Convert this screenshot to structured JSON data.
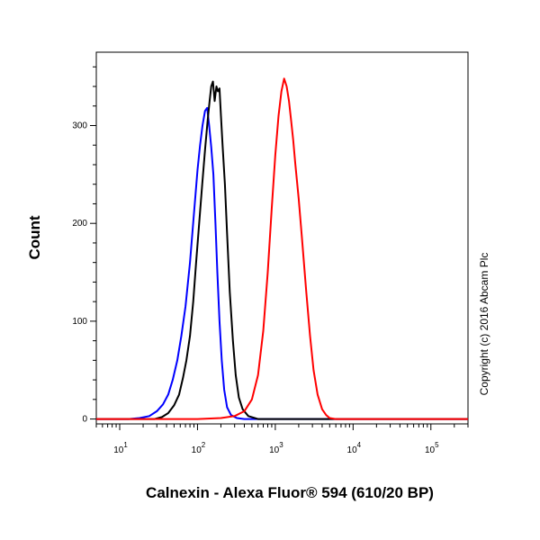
{
  "chart_data": {
    "type": "line",
    "xlabel": "Calnexin - Alexa Fluor® 594 (610/20 BP)",
    "ylabel": "Count",
    "x_scale": "log",
    "xlim": [
      5,
      300000
    ],
    "ylim": [
      -5,
      375
    ],
    "x_ticks": [
      {
        "value": 10,
        "base": "10",
        "exp": "1"
      },
      {
        "value": 100,
        "base": "10",
        "exp": "2"
      },
      {
        "value": 1000,
        "base": "10",
        "exp": "3"
      },
      {
        "value": 10000,
        "base": "10",
        "exp": "4"
      },
      {
        "value": 100000,
        "base": "10",
        "exp": "5"
      }
    ],
    "y_ticks": [
      {
        "value": 0,
        "label": "0"
      },
      {
        "value": 100,
        "label": "100"
      },
      {
        "value": 200,
        "label": "200"
      },
      {
        "value": 300,
        "label": "300"
      }
    ],
    "grid": false,
    "series": [
      {
        "color": "#0000ff",
        "x": [
          5,
          13,
          18,
          24,
          30,
          36,
          42,
          48,
          55,
          62,
          70,
          80,
          90,
          100,
          108,
          116,
          125,
          133,
          141,
          150,
          160,
          170,
          180,
          192,
          205,
          220,
          240,
          270,
          320,
          400,
          1000,
          10000,
          300000
        ],
        "y": [
          0,
          0,
          1,
          3,
          8,
          15,
          25,
          40,
          60,
          85,
          115,
          160,
          210,
          255,
          280,
          300,
          315,
          318,
          300,
          278,
          250,
          200,
          150,
          100,
          60,
          30,
          12,
          4,
          1,
          0,
          0,
          0,
          0
        ]
      },
      {
        "color": "#000000",
        "x": [
          5,
          28,
          35,
          42,
          50,
          58,
          65,
          72,
          80,
          88,
          96,
          105,
          115,
          125,
          135,
          143,
          150,
          158,
          166,
          175,
          183,
          192,
          200,
          210,
          225,
          240,
          260,
          285,
          310,
          340,
          380,
          450,
          600,
          1000,
          10000,
          300000
        ],
        "y": [
          0,
          0,
          2,
          6,
          14,
          25,
          42,
          60,
          85,
          120,
          160,
          200,
          240,
          275,
          305,
          325,
          340,
          345,
          325,
          340,
          335,
          338,
          310,
          280,
          240,
          190,
          130,
          80,
          45,
          22,
          10,
          3,
          0,
          0,
          0,
          0
        ]
      },
      {
        "color": "#ff0000",
        "x": [
          5,
          100,
          200,
          300,
          400,
          500,
          600,
          700,
          800,
          900,
          1000,
          1100,
          1200,
          1300,
          1400,
          1500,
          1600,
          1700,
          1800,
          2000,
          2200,
          2500,
          2800,
          3100,
          3500,
          4000,
          4500,
          5000,
          6000,
          8000,
          20000,
          300000
        ],
        "y": [
          0,
          0,
          1,
          3,
          8,
          20,
          45,
          90,
          150,
          215,
          270,
          310,
          335,
          348,
          340,
          325,
          305,
          285,
          262,
          225,
          185,
          130,
          85,
          50,
          25,
          10,
          4,
          1,
          0,
          0,
          0,
          0
        ]
      }
    ]
  },
  "copyright": "Copyright (c) 2016 Abcam Plc"
}
